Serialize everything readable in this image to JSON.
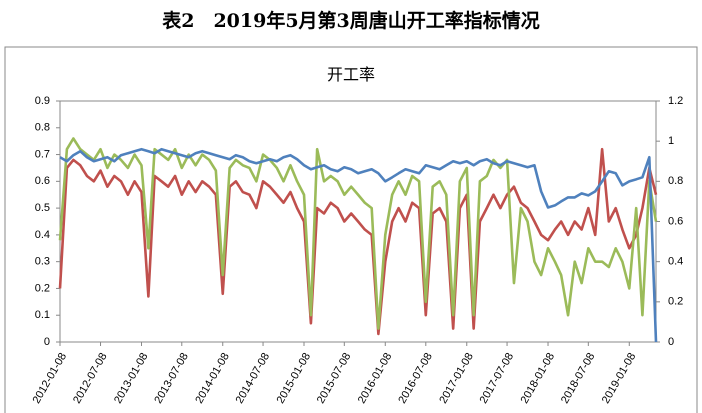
{
  "header": {
    "title": "表2　2019年5月第3周唐山开工率指标情况"
  },
  "chart_data": {
    "type": "line",
    "title": "开工率",
    "x": [
      "2012-01-08",
      "2012-02-08",
      "2012-03-08",
      "2012-04-08",
      "2012-05-08",
      "2012-06-08",
      "2012-07-08",
      "2012-08-08",
      "2012-09-08",
      "2012-10-08",
      "2012-11-08",
      "2012-12-08",
      "2013-01-08",
      "2013-02-08",
      "2013-03-08",
      "2013-04-08",
      "2013-05-08",
      "2013-06-08",
      "2013-07-08",
      "2013-08-08",
      "2013-09-08",
      "2013-10-08",
      "2013-11-08",
      "2013-12-08",
      "2014-01-08",
      "2014-02-08",
      "2014-03-08",
      "2014-04-08",
      "2014-05-08",
      "2014-06-08",
      "2014-07-08",
      "2014-08-08",
      "2014-09-08",
      "2014-10-08",
      "2014-11-08",
      "2014-12-08",
      "2015-01-08",
      "2015-02-08",
      "2015-03-08",
      "2015-04-08",
      "2015-05-08",
      "2015-06-08",
      "2015-07-08",
      "2015-08-08",
      "2015-09-08",
      "2015-10-08",
      "2015-11-08",
      "2015-12-08",
      "2016-01-08",
      "2016-02-08",
      "2016-03-08",
      "2016-04-08",
      "2016-05-08",
      "2016-06-08",
      "2016-07-08",
      "2016-08-08",
      "2016-09-08",
      "2016-10-08",
      "2016-11-08",
      "2016-12-08",
      "2017-01-08",
      "2017-02-08",
      "2017-03-08",
      "2017-04-08",
      "2017-05-08",
      "2017-06-08",
      "2017-07-08",
      "2017-08-08",
      "2017-09-08",
      "2017-10-08",
      "2017-11-08",
      "2017-12-08",
      "2018-01-08",
      "2018-02-08",
      "2018-03-08",
      "2018-04-08",
      "2018-05-08",
      "2018-06-08",
      "2018-07-08",
      "2018-08-08",
      "2018-09-08",
      "2018-10-08",
      "2018-11-08",
      "2018-12-08",
      "2019-01-08",
      "2019-02-08",
      "2019-03-08",
      "2019-04-08",
      "2019-05-08"
    ],
    "series": [
      {
        "color": "#c0504d",
        "values": [
          0.2,
          0.65,
          0.68,
          0.66,
          0.62,
          0.6,
          0.64,
          0.58,
          0.62,
          0.6,
          0.55,
          0.6,
          0.56,
          0.17,
          0.62,
          0.6,
          0.58,
          0.62,
          0.55,
          0.6,
          0.56,
          0.6,
          0.58,
          0.55,
          0.18,
          0.58,
          0.6,
          0.56,
          0.55,
          0.5,
          0.6,
          0.58,
          0.55,
          0.52,
          0.56,
          0.5,
          0.45,
          0.07,
          0.5,
          0.48,
          0.52,
          0.5,
          0.45,
          0.48,
          0.45,
          0.42,
          0.4,
          0.03,
          0.3,
          0.45,
          0.5,
          0.45,
          0.52,
          0.5,
          0.1,
          0.48,
          0.5,
          0.45,
          0.05,
          0.5,
          0.55,
          0.05,
          0.45,
          0.5,
          0.55,
          0.5,
          0.55,
          0.58,
          0.52,
          0.5,
          0.45,
          0.4,
          0.38,
          0.42,
          0.45,
          0.4,
          0.45,
          0.42,
          0.5,
          0.4,
          0.72,
          0.45,
          0.5,
          0.42,
          0.35,
          0.4,
          0.5,
          0.65,
          0.55
        ]
      },
      {
        "color": "#9bbb59",
        "values": [
          0.38,
          0.72,
          0.76,
          0.72,
          0.7,
          0.68,
          0.72,
          0.65,
          0.7,
          0.68,
          0.65,
          0.7,
          0.66,
          0.35,
          0.72,
          0.7,
          0.68,
          0.72,
          0.65,
          0.7,
          0.66,
          0.7,
          0.68,
          0.64,
          0.25,
          0.65,
          0.68,
          0.66,
          0.65,
          0.6,
          0.7,
          0.68,
          0.65,
          0.6,
          0.66,
          0.6,
          0.55,
          0.1,
          0.72,
          0.6,
          0.62,
          0.6,
          0.55,
          0.58,
          0.55,
          0.52,
          0.5,
          0.05,
          0.4,
          0.55,
          0.6,
          0.55,
          0.62,
          0.6,
          0.15,
          0.58,
          0.6,
          0.55,
          0.1,
          0.6,
          0.65,
          0.1,
          0.6,
          0.62,
          0.68,
          0.65,
          0.68,
          0.22,
          0.5,
          0.45,
          0.3,
          0.25,
          0.35,
          0.3,
          0.25,
          0.1,
          0.3,
          0.22,
          0.35,
          0.3,
          0.3,
          0.28,
          0.35,
          0.3,
          0.2,
          0.5,
          0.1,
          0.6,
          0.45
        ]
      },
      {
        "color": "#4f81bd",
        "axis": "y2",
        "values": [
          0.92,
          0.9,
          0.93,
          0.95,
          0.92,
          0.9,
          0.91,
          0.92,
          0.9,
          0.93,
          0.94,
          0.95,
          0.96,
          0.95,
          0.94,
          0.96,
          0.95,
          0.94,
          0.93,
          0.92,
          0.94,
          0.95,
          0.94,
          0.93,
          0.92,
          0.91,
          0.93,
          0.92,
          0.9,
          0.89,
          0.9,
          0.91,
          0.9,
          0.92,
          0.93,
          0.91,
          0.88,
          0.86,
          0.87,
          0.88,
          0.86,
          0.85,
          0.87,
          0.86,
          0.84,
          0.85,
          0.86,
          0.84,
          0.8,
          0.82,
          0.84,
          0.86,
          0.85,
          0.84,
          0.88,
          0.87,
          0.86,
          0.88,
          0.9,
          0.89,
          0.9,
          0.88,
          0.9,
          0.91,
          0.89,
          0.88,
          0.9,
          0.89,
          0.88,
          0.87,
          0.88,
          0.75,
          0.67,
          0.68,
          0.7,
          0.72,
          0.72,
          0.74,
          0.73,
          0.75,
          0.8,
          0.85,
          0.84,
          0.78,
          0.8,
          0.81,
          0.82,
          0.92,
          0
        ]
      }
    ],
    "xlim": [
      "2012-01-08",
      "2019-05-08"
    ],
    "xticks": [
      "2012-01-08",
      "2012-07-08",
      "2013-01-08",
      "2013-07-08",
      "2014-01-08",
      "2014-07-08",
      "2015-01-08",
      "2015-07-08",
      "2016-01-08",
      "2016-07-08",
      "2017-01-08",
      "2017-07-08",
      "2018-01-08",
      "2018-07-08",
      "2019-01-08"
    ],
    "ylim": [
      0,
      0.9
    ],
    "yticks": [
      0,
      0.1,
      0.2,
      0.3,
      0.4,
      0.5,
      0.6,
      0.7,
      0.8,
      0.9
    ],
    "y2lim": [
      0,
      1.2
    ],
    "y2ticks": [
      0,
      0.2,
      0.4,
      0.6,
      0.8,
      1,
      1.2
    ]
  }
}
